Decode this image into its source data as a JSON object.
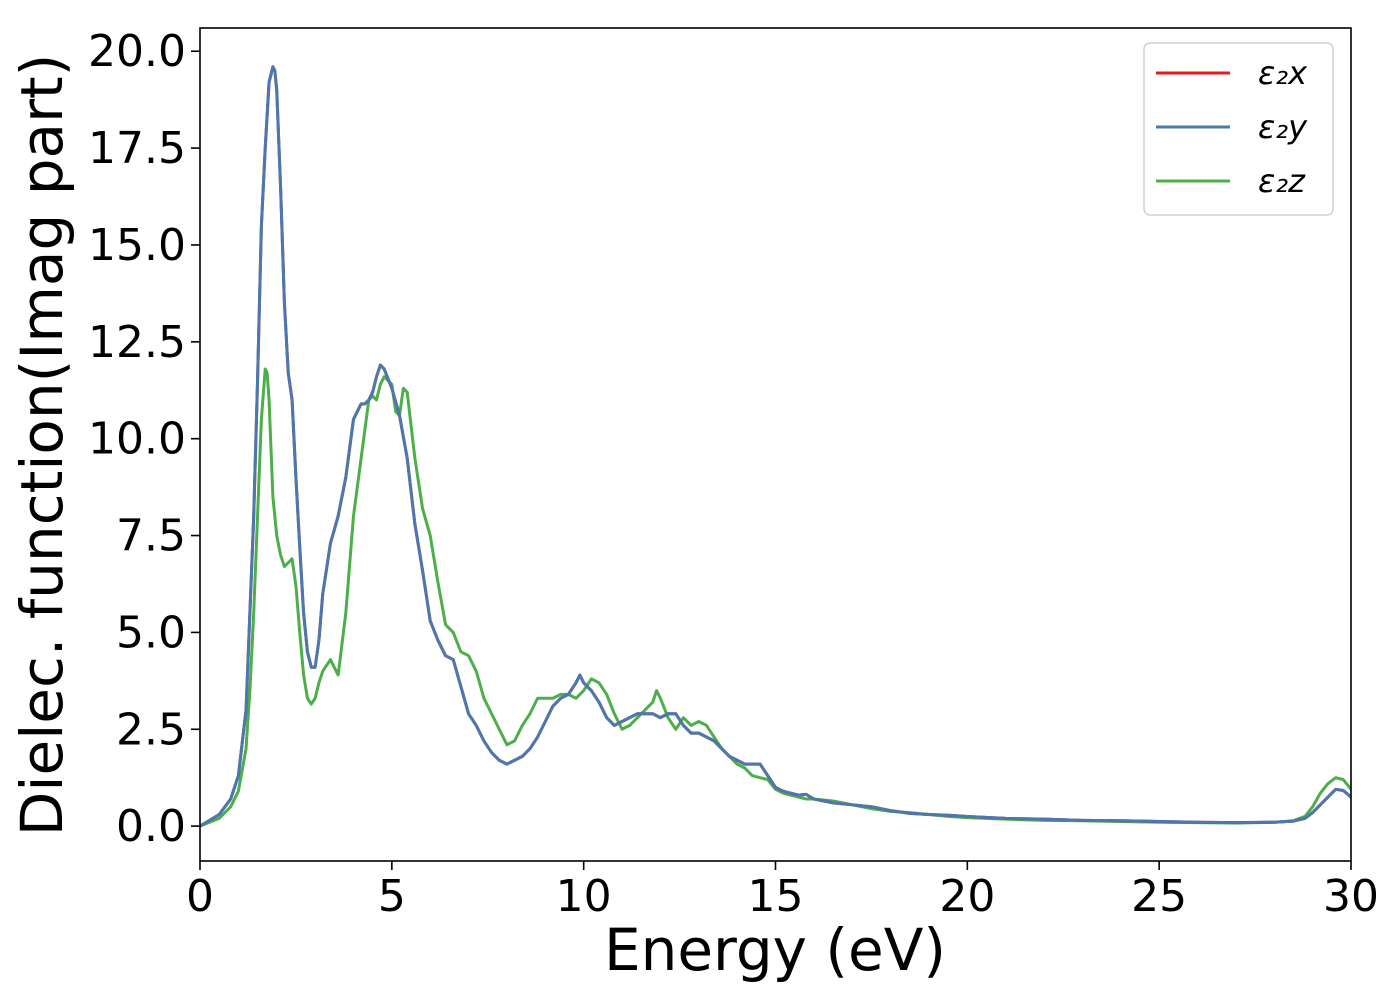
{
  "chart_data": {
    "type": "line",
    "title": "",
    "xlabel": "Energy (eV)",
    "ylabel": "Dielec. function(Imag part)",
    "xlim": [
      0,
      30
    ],
    "ylim": [
      -0.9,
      20.6
    ],
    "xticks": [
      {
        "value": 0,
        "label": "0"
      },
      {
        "value": 5,
        "label": "5"
      },
      {
        "value": 10,
        "label": "10"
      },
      {
        "value": 15,
        "label": "15"
      },
      {
        "value": 20,
        "label": "20"
      },
      {
        "value": 25,
        "label": "25"
      },
      {
        "value": 30,
        "label": "30"
      }
    ],
    "yticks": [
      {
        "value": 0.0,
        "label": "0.0"
      },
      {
        "value": 2.5,
        "label": "2.5"
      },
      {
        "value": 5.0,
        "label": "5.0"
      },
      {
        "value": 7.5,
        "label": "7.5"
      },
      {
        "value": 10.0,
        "label": "10.0"
      },
      {
        "value": 12.5,
        "label": "12.5"
      },
      {
        "value": 15.0,
        "label": "15.0"
      },
      {
        "value": 17.5,
        "label": "17.5"
      },
      {
        "value": 20.0,
        "label": "20.0"
      }
    ],
    "grid": false,
    "legend_position": "top-right",
    "series": [
      {
        "name": "ε₂x",
        "color": "#e41a1c",
        "x": [
          0,
          0.5,
          0.8,
          1.0,
          1.2,
          1.3,
          1.4,
          1.5,
          1.6,
          1.7,
          1.8,
          1.9,
          1.95,
          2.0,
          2.1,
          2.2,
          2.3,
          2.4,
          2.5,
          2.6,
          2.7,
          2.8,
          2.9,
          3.0,
          3.1,
          3.2,
          3.4,
          3.6,
          3.8,
          4.0,
          4.2,
          4.3,
          4.4,
          4.5,
          4.6,
          4.7,
          4.8,
          5.0,
          5.2,
          5.4,
          5.6,
          5.8,
          6.0,
          6.2,
          6.4,
          6.6,
          6.8,
          7.0,
          7.2,
          7.4,
          7.6,
          7.8,
          8.0,
          8.2,
          8.4,
          8.6,
          8.8,
          9.0,
          9.2,
          9.4,
          9.6,
          9.8,
          9.9,
          10.0,
          10.2,
          10.4,
          10.6,
          10.8,
          11.0,
          11.2,
          11.4,
          11.6,
          11.8,
          12.0,
          12.2,
          12.4,
          12.6,
          12.8,
          13.0,
          13.2,
          13.4,
          13.6,
          13.8,
          14.0,
          14.2,
          14.4,
          14.6,
          14.8,
          15.0,
          15.2,
          15.4,
          15.6,
          15.8,
          16.0,
          16.5,
          17.0,
          17.5,
          18.0,
          18.5,
          19.0,
          19.5,
          20.0,
          21.0,
          22.0,
          23.0,
          24.0,
          25.0,
          26.0,
          27.0,
          28.0,
          28.5,
          28.8,
          29.0,
          29.2,
          29.4,
          29.6,
          29.8,
          30.0
        ],
        "y": [
          0.0,
          0.3,
          0.7,
          1.3,
          3.0,
          5.5,
          8.0,
          11.5,
          15.5,
          17.5,
          19.2,
          19.6,
          19.5,
          19.0,
          16.5,
          13.5,
          11.7,
          11.0,
          9.0,
          7.2,
          5.5,
          4.5,
          4.1,
          4.1,
          4.8,
          6.0,
          7.3,
          8.0,
          9.0,
          10.5,
          10.9,
          10.9,
          11.0,
          11.2,
          11.6,
          11.9,
          11.8,
          11.3,
          10.6,
          9.5,
          7.8,
          6.6,
          5.3,
          4.8,
          4.4,
          4.3,
          3.6,
          2.9,
          2.6,
          2.2,
          1.9,
          1.7,
          1.6,
          1.7,
          1.8,
          2.0,
          2.3,
          2.7,
          3.1,
          3.3,
          3.4,
          3.7,
          3.9,
          3.7,
          3.5,
          3.2,
          2.8,
          2.6,
          2.7,
          2.8,
          2.9,
          2.9,
          2.9,
          2.8,
          2.9,
          2.9,
          2.6,
          2.4,
          2.4,
          2.3,
          2.2,
          2.0,
          1.8,
          1.7,
          1.6,
          1.6,
          1.6,
          1.3,
          1.0,
          0.9,
          0.85,
          0.8,
          0.82,
          0.7,
          0.6,
          0.55,
          0.5,
          0.4,
          0.33,
          0.3,
          0.28,
          0.25,
          0.2,
          0.18,
          0.15,
          0.14,
          0.12,
          0.1,
          0.09,
          0.1,
          0.13,
          0.2,
          0.35,
          0.55,
          0.75,
          0.95,
          0.92,
          0.75
        ]
      },
      {
        "name": "ε₂y",
        "color": "#4a79b0",
        "x": [
          0,
          0.5,
          0.8,
          1.0,
          1.2,
          1.3,
          1.4,
          1.5,
          1.6,
          1.7,
          1.8,
          1.9,
          1.95,
          2.0,
          2.1,
          2.2,
          2.3,
          2.4,
          2.5,
          2.6,
          2.7,
          2.8,
          2.9,
          3.0,
          3.1,
          3.2,
          3.4,
          3.6,
          3.8,
          4.0,
          4.2,
          4.3,
          4.4,
          4.5,
          4.6,
          4.7,
          4.8,
          5.0,
          5.2,
          5.4,
          5.6,
          5.8,
          6.0,
          6.2,
          6.4,
          6.6,
          6.8,
          7.0,
          7.2,
          7.4,
          7.6,
          7.8,
          8.0,
          8.2,
          8.4,
          8.6,
          8.8,
          9.0,
          9.2,
          9.4,
          9.6,
          9.8,
          9.9,
          10.0,
          10.2,
          10.4,
          10.6,
          10.8,
          11.0,
          11.2,
          11.4,
          11.6,
          11.8,
          12.0,
          12.2,
          12.4,
          12.6,
          12.8,
          13.0,
          13.2,
          13.4,
          13.6,
          13.8,
          14.0,
          14.2,
          14.4,
          14.6,
          14.8,
          15.0,
          15.2,
          15.4,
          15.6,
          15.8,
          16.0,
          16.5,
          17.0,
          17.5,
          18.0,
          18.5,
          19.0,
          19.5,
          20.0,
          21.0,
          22.0,
          23.0,
          24.0,
          25.0,
          26.0,
          27.0,
          28.0,
          28.5,
          28.8,
          29.0,
          29.2,
          29.4,
          29.6,
          29.8,
          30.0
        ],
        "y": [
          0.0,
          0.3,
          0.7,
          1.3,
          3.0,
          5.5,
          8.0,
          11.5,
          15.5,
          17.5,
          19.2,
          19.6,
          19.5,
          19.0,
          16.5,
          13.5,
          11.7,
          11.0,
          9.0,
          7.2,
          5.5,
          4.5,
          4.1,
          4.1,
          4.8,
          6.0,
          7.3,
          8.0,
          9.0,
          10.5,
          10.9,
          10.9,
          11.0,
          11.2,
          11.6,
          11.9,
          11.8,
          11.3,
          10.6,
          9.5,
          7.8,
          6.6,
          5.3,
          4.8,
          4.4,
          4.3,
          3.6,
          2.9,
          2.6,
          2.2,
          1.9,
          1.7,
          1.6,
          1.7,
          1.8,
          2.0,
          2.3,
          2.7,
          3.1,
          3.3,
          3.4,
          3.7,
          3.9,
          3.7,
          3.5,
          3.2,
          2.8,
          2.6,
          2.7,
          2.8,
          2.9,
          2.9,
          2.9,
          2.8,
          2.9,
          2.9,
          2.6,
          2.4,
          2.4,
          2.3,
          2.2,
          2.0,
          1.8,
          1.7,
          1.6,
          1.6,
          1.6,
          1.3,
          1.0,
          0.9,
          0.85,
          0.8,
          0.82,
          0.7,
          0.6,
          0.55,
          0.5,
          0.4,
          0.33,
          0.3,
          0.28,
          0.25,
          0.2,
          0.18,
          0.15,
          0.14,
          0.12,
          0.1,
          0.09,
          0.1,
          0.13,
          0.2,
          0.35,
          0.55,
          0.75,
          0.95,
          0.92,
          0.75
        ]
      },
      {
        "name": "ε₂z",
        "color": "#4daf4a",
        "x": [
          0,
          0.5,
          0.8,
          1.0,
          1.2,
          1.3,
          1.4,
          1.5,
          1.6,
          1.7,
          1.75,
          1.8,
          1.9,
          2.0,
          2.1,
          2.2,
          2.3,
          2.4,
          2.5,
          2.6,
          2.7,
          2.8,
          2.9,
          3.0,
          3.1,
          3.2,
          3.4,
          3.6,
          3.8,
          4.0,
          4.2,
          4.4,
          4.5,
          4.6,
          4.7,
          4.8,
          5.0,
          5.1,
          5.2,
          5.3,
          5.4,
          5.6,
          5.8,
          6.0,
          6.2,
          6.4,
          6.6,
          6.8,
          7.0,
          7.2,
          7.4,
          7.6,
          7.8,
          8.0,
          8.2,
          8.4,
          8.6,
          8.8,
          9.0,
          9.2,
          9.4,
          9.6,
          9.8,
          10.0,
          10.2,
          10.4,
          10.6,
          10.8,
          11.0,
          11.2,
          11.4,
          11.6,
          11.8,
          11.9,
          12.0,
          12.2,
          12.4,
          12.6,
          12.8,
          13.0,
          13.2,
          13.4,
          13.6,
          13.8,
          14.0,
          14.2,
          14.4,
          14.6,
          14.8,
          15.0,
          15.2,
          15.4,
          15.6,
          15.8,
          16.0,
          16.5,
          17.0,
          17.5,
          18.0,
          18.5,
          19.0,
          19.5,
          20.0,
          21.0,
          22.0,
          23.0,
          24.0,
          25.0,
          26.0,
          27.0,
          28.0,
          28.5,
          28.8,
          29.0,
          29.2,
          29.4,
          29.6,
          29.8,
          30.0
        ],
        "y": [
          0.0,
          0.2,
          0.5,
          0.9,
          2.0,
          3.5,
          5.5,
          8.0,
          10.5,
          11.8,
          11.7,
          11.0,
          8.5,
          7.5,
          7.0,
          6.7,
          6.8,
          6.9,
          6.2,
          5.0,
          3.9,
          3.3,
          3.15,
          3.3,
          3.7,
          4.0,
          4.3,
          3.9,
          5.5,
          8.0,
          9.5,
          11.0,
          11.1,
          11.0,
          11.4,
          11.6,
          11.4,
          10.7,
          10.6,
          11.3,
          11.2,
          9.5,
          8.2,
          7.5,
          6.3,
          5.2,
          5.0,
          4.5,
          4.4,
          4.0,
          3.3,
          2.9,
          2.5,
          2.1,
          2.2,
          2.6,
          2.9,
          3.3,
          3.3,
          3.3,
          3.4,
          3.4,
          3.3,
          3.5,
          3.8,
          3.7,
          3.4,
          2.9,
          2.5,
          2.6,
          2.8,
          3.0,
          3.2,
          3.5,
          3.3,
          2.8,
          2.5,
          2.8,
          2.6,
          2.7,
          2.6,
          2.3,
          2.0,
          1.8,
          1.6,
          1.5,
          1.3,
          1.25,
          1.2,
          0.95,
          0.85,
          0.8,
          0.75,
          0.7,
          0.7,
          0.65,
          0.55,
          0.45,
          0.38,
          0.35,
          0.3,
          0.25,
          0.22,
          0.18,
          0.15,
          0.14,
          0.12,
          0.1,
          0.09,
          0.08,
          0.1,
          0.14,
          0.25,
          0.5,
          0.85,
          1.1,
          1.25,
          1.2,
          0.95
        ]
      }
    ]
  }
}
